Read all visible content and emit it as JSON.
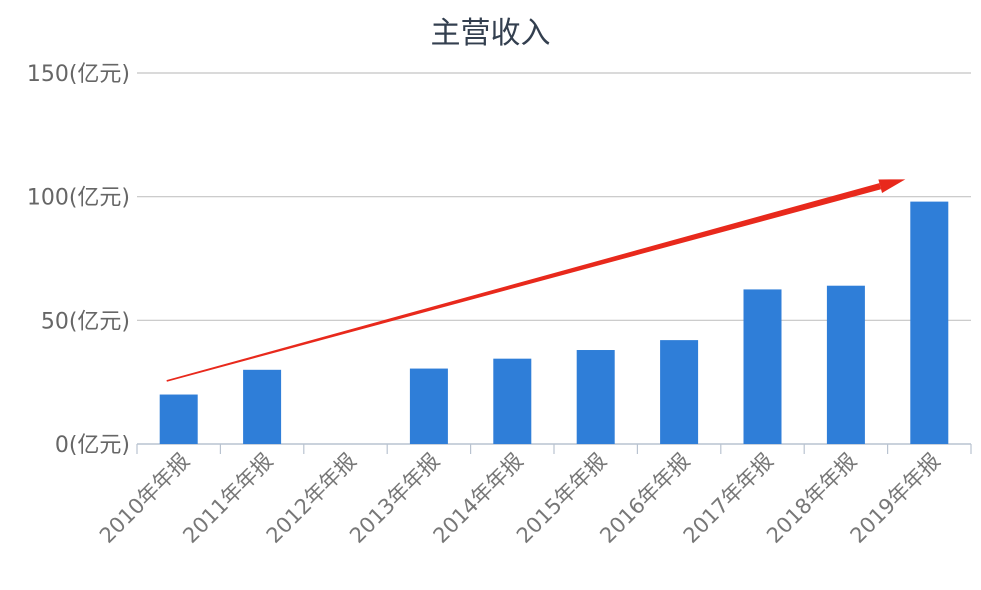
{
  "chart_data": {
    "type": "bar",
    "title": "主营收入",
    "categories": [
      "2010年年报",
      "2011年年报",
      "2012年年报",
      "2013年年报",
      "2014年年报",
      "2015年年报",
      "2016年年报",
      "2017年年报",
      "2018年年报",
      "2019年年报"
    ],
    "values": [
      20,
      30,
      0,
      30.5,
      34.5,
      38,
      42,
      62.5,
      64,
      98
    ],
    "ylim": [
      0,
      150
    ],
    "yticks": [
      0,
      50,
      100,
      150
    ],
    "ytick_labels": [
      "0(亿元)",
      "50(亿元)",
      "100(亿元)",
      "150(亿元)"
    ],
    "grid": true,
    "bar_color": "#2f7ed8",
    "annotation": {
      "type": "trend-arrow",
      "color": "#e8291c",
      "from": {
        "category_index": 0,
        "value": 25.5
      },
      "to": {
        "category_index": 9,
        "value": 107
      }
    }
  }
}
